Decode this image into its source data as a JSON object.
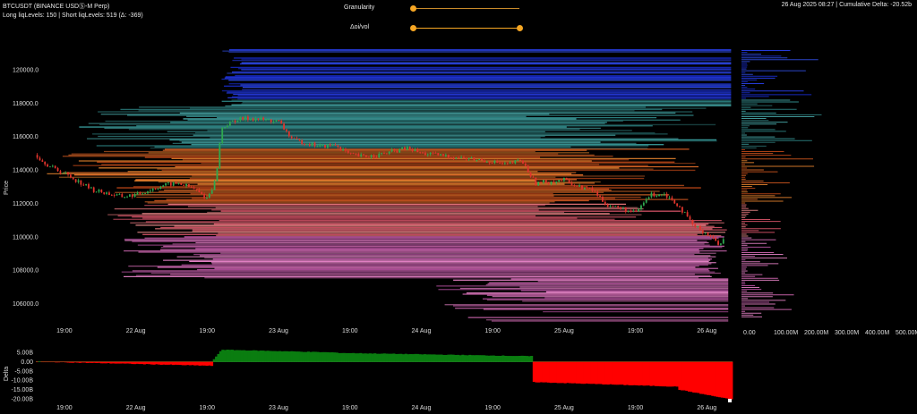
{
  "header": {
    "title": "BTCUSDT (BINANCE USDⓈ-M Perp)",
    "subtitle": "Long liqLevels: 150 | Short liqLevels: 519 (Δ: -369)",
    "status": "26 Aug 2025 08:27 | Cumulative Delta: -20.52b"
  },
  "controls": {
    "granularity_label": "Granularity",
    "granularity_value": 0.0,
    "oi_vol_label": "Δoi/vol",
    "oi_vol_range": [
      0.0,
      1.0
    ]
  },
  "colors": {
    "up": "#2fa84f",
    "down": "#e0342c",
    "delta_pos": "#0a7d10",
    "delta_neg": "#ff0000",
    "accent": "#f6a623"
  },
  "chart_data": [
    {
      "type": "line",
      "name": "price-heatmap",
      "ylabel": "Price",
      "ylim": [
        104900,
        121500
      ],
      "yticks": [
        106000,
        108000,
        110000,
        112000,
        114000,
        116000,
        118000,
        120000
      ],
      "ytick_labels": [
        "106000.0",
        "108000.0",
        "110000.0",
        "112000.0",
        "114000.0",
        "116000.0",
        "118000.0",
        "120000.0"
      ],
      "xticks": [
        {
          "x": 2,
          "label": "19:00"
        },
        {
          "x": 7,
          "label": "22 Aug"
        },
        {
          "x": 12,
          "label": "19:00"
        },
        {
          "x": 17,
          "label": "23 Aug"
        },
        {
          "x": 22,
          "label": "19:00"
        },
        {
          "x": 27,
          "label": "24 Aug"
        },
        {
          "x": 32,
          "label": "19:00"
        },
        {
          "x": 37,
          "label": "25 Aug"
        },
        {
          "x": 42,
          "label": "19:00"
        },
        {
          "x": 47,
          "label": "26 Aug"
        }
      ],
      "xlim": [
        0,
        48.8
      ],
      "price": [
        [
          0,
          114900
        ],
        [
          1,
          114200
        ],
        [
          2,
          113800
        ],
        [
          3,
          113300
        ],
        [
          4,
          112800
        ],
        [
          5,
          112600
        ],
        [
          6,
          112400
        ],
        [
          7,
          112500
        ],
        [
          8,
          112800
        ],
        [
          9,
          113100
        ],
        [
          10,
          113200
        ],
        [
          11,
          112900
        ],
        [
          12,
          112300
        ],
        [
          12.6,
          113400
        ],
        [
          13,
          116500
        ],
        [
          14,
          117000
        ],
        [
          15,
          117100
        ],
        [
          16,
          117000
        ],
        [
          17,
          116900
        ],
        [
          18,
          115800
        ],
        [
          19,
          115600
        ],
        [
          20,
          115400
        ],
        [
          21,
          115500
        ],
        [
          22,
          114900
        ],
        [
          23,
          114800
        ],
        [
          24,
          114900
        ],
        [
          25,
          115100
        ],
        [
          26,
          115300
        ],
        [
          27,
          115000
        ],
        [
          28,
          114900
        ],
        [
          29,
          114800
        ],
        [
          30,
          114700
        ],
        [
          31,
          114600
        ],
        [
          32,
          114500
        ],
        [
          33,
          114300
        ],
        [
          34,
          114600
        ],
        [
          35,
          113200
        ],
        [
          36,
          113300
        ],
        [
          37,
          113400
        ],
        [
          38,
          113000
        ],
        [
          39,
          112800
        ],
        [
          40,
          111900
        ],
        [
          41,
          111700
        ],
        [
          42,
          111400
        ],
        [
          43,
          112500
        ],
        [
          44,
          112600
        ],
        [
          45,
          111900
        ],
        [
          46,
          110700
        ],
        [
          47,
          110200
        ],
        [
          47.8,
          109600
        ],
        [
          48.3,
          109900
        ]
      ],
      "profile_xlabels": [
        "0.00",
        "100.00M",
        "200.00M",
        "300.00M",
        "400.00M",
        "500.00M"
      ]
    },
    {
      "type": "bar",
      "name": "cumulative-delta",
      "ylabel": "Delta",
      "ylim": [
        -21000000000,
        8000000000
      ],
      "yticks": [
        5000000000,
        0,
        -5000000000,
        -10000000000,
        -15000000000,
        -20000000000
      ],
      "ytick_labels": [
        "5.00B",
        "0.00",
        "-5.00B",
        "-10.00B",
        "-15.00B",
        "-20.00B"
      ],
      "segments": [
        {
          "x0": 0,
          "x1": 6,
          "y0": 0,
          "y1": -1000000000
        },
        {
          "x0": 6,
          "x1": 12.4,
          "y0": -1000000000,
          "y1": -2200000000
        },
        {
          "x0": 12.4,
          "x1": 13,
          "y0": 500000000,
          "y1": 6500000000
        },
        {
          "x0": 13,
          "x1": 21,
          "y0": 6500000000,
          "y1": 5000000000
        },
        {
          "x0": 21,
          "x1": 34.8,
          "y0": 4800000000,
          "y1": 3000000000
        },
        {
          "x0": 34.8,
          "x1": 39,
          "y0": -11000000000,
          "y1": -12000000000
        },
        {
          "x0": 39,
          "x1": 45,
          "y0": -12000000000,
          "y1": -13500000000
        },
        {
          "x0": 45,
          "x1": 48.8,
          "y0": -15000000000,
          "y1": -20500000000
        }
      ]
    }
  ]
}
